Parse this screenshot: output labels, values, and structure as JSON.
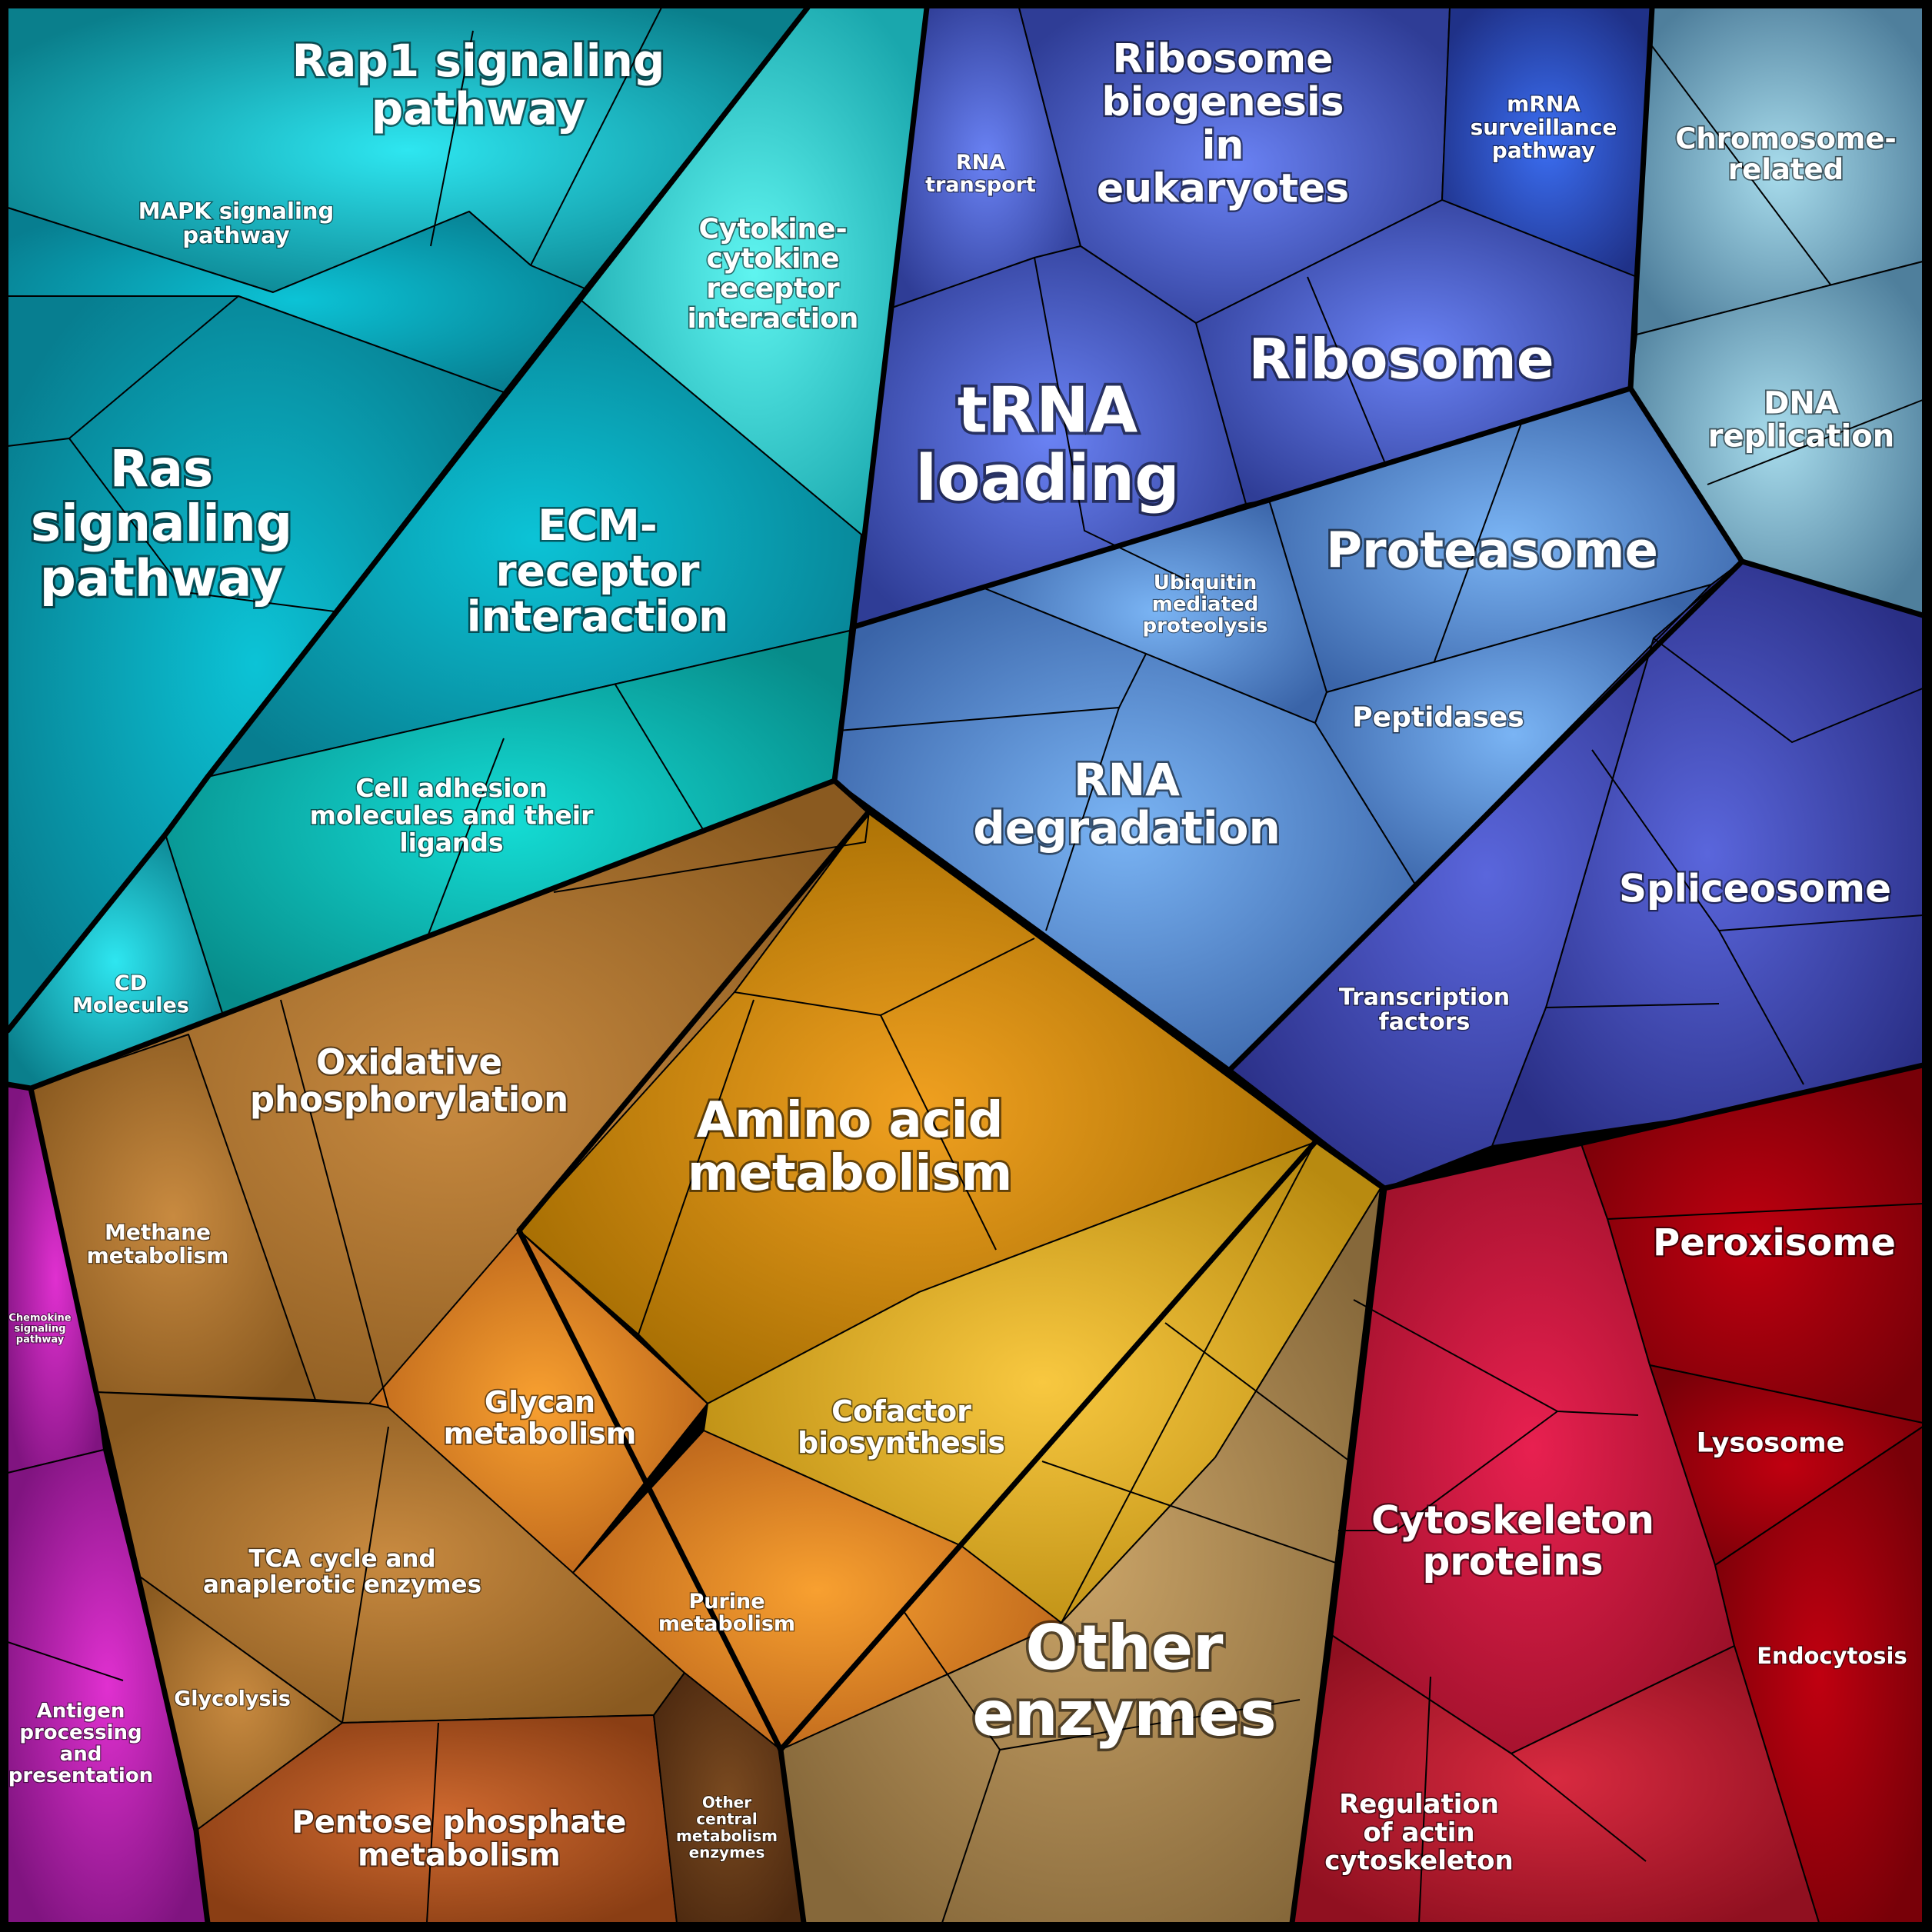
{
  "groups": [
    {
      "id": "signaling",
      "color": "#0aa6b4"
    },
    {
      "id": "genetic",
      "color": "#4a5fd0"
    },
    {
      "id": "chromosome",
      "color": "#7aa9c8"
    },
    {
      "id": "metabolism",
      "color": "#c88a2a"
    },
    {
      "id": "immune",
      "color": "#a0189a"
    },
    {
      "id": "cellular",
      "color": "#c0183a"
    }
  ],
  "labels": {
    "rap1": [
      "Rap1 signaling",
      "pathway"
    ],
    "mapk": [
      "MAPK signaling",
      "pathway"
    ],
    "ras": [
      "Ras",
      "signaling",
      "pathway"
    ],
    "cytokine": [
      "Cytokine-",
      "cytokine",
      "receptor",
      "interaction"
    ],
    "ecm": [
      "ECM-",
      "receptor",
      "interaction"
    ],
    "cell_adhesion": [
      "Cell adhesion",
      "molecules and their",
      "ligands"
    ],
    "cd_molecules": [
      "CD",
      "Molecules"
    ],
    "rna_transport": [
      "RNA",
      "transport"
    ],
    "ribosome_biogenesis": [
      "Ribosome",
      "biogenesis",
      "in",
      "eukaryotes"
    ],
    "mrna_surveillance": [
      "mRNA",
      "surveillance",
      "pathway"
    ],
    "chromosome_related": [
      "Chromosome-",
      "related"
    ],
    "trna_loading": [
      "tRNA",
      "loading"
    ],
    "ribosome": [
      "Ribosome"
    ],
    "dna_replication": [
      "DNA",
      "replication"
    ],
    "ubiquitin": [
      "Ubiquitin",
      "mediated",
      "proteolysis"
    ],
    "proteasome": [
      "Proteasome"
    ],
    "peptidases": [
      "Peptidases"
    ],
    "rna_degradation": [
      "RNA",
      "degradation"
    ],
    "spliceosome": [
      "Spliceosome"
    ],
    "transcription_factors": [
      "Transcription",
      "factors"
    ],
    "oxphos": [
      "Oxidative",
      "phosphorylation"
    ],
    "amino_acid": [
      "Amino acid",
      "metabolism"
    ],
    "methane": [
      "Methane",
      "metabolism"
    ],
    "glycan": [
      "Glycan",
      "metabolism"
    ],
    "cofactor": [
      "Cofactor",
      "biosynthesis"
    ],
    "tca": [
      "TCA cycle and",
      "anaplerotic enzymes"
    ],
    "glycolysis": [
      "Glycolysis"
    ],
    "purine": [
      "Purine",
      "metabolism"
    ],
    "other_enzymes": [
      "Other",
      "enzymes"
    ],
    "pentose": [
      "Pentose phosphate",
      "metabolism"
    ],
    "other_central": [
      "Other",
      "central",
      "metabolism",
      "enzymes"
    ],
    "chemokine": [
      "Chemokine",
      "signaling",
      "pathway"
    ],
    "antigen": [
      "Antigen",
      "processing",
      "and",
      "presentation"
    ],
    "peroxisome": [
      "Peroxisome"
    ],
    "lysosome": [
      "Lysosome"
    ],
    "cytoskeleton": [
      "Cytoskeleton",
      "proteins"
    ],
    "endocytosis": [
      "Endocytosis"
    ],
    "actin": [
      "Regulation",
      "of actin",
      "cytoskeleton"
    ]
  }
}
